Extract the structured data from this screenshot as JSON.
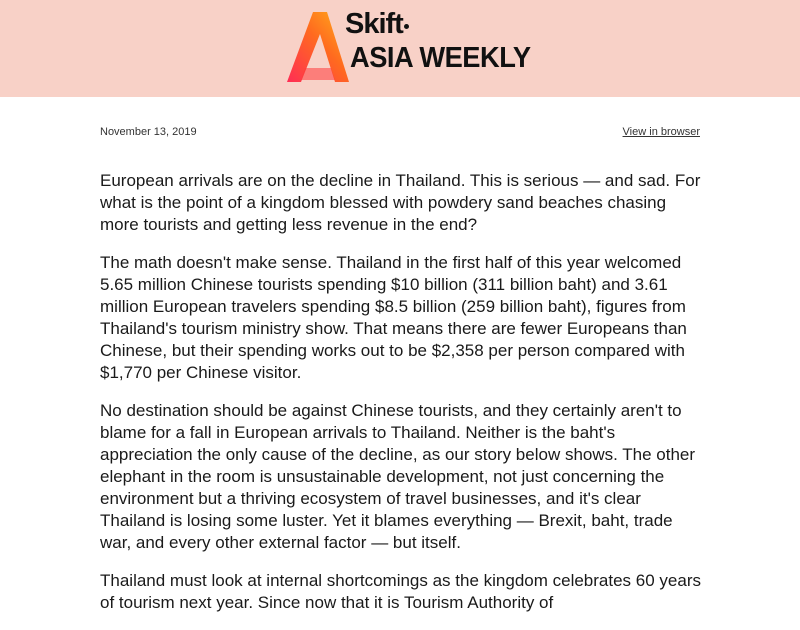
{
  "header": {
    "logo_brand": "Skift",
    "logo_title": "ASIA WEEKLY",
    "bg_color": "#f8d1c7",
    "logo_gradient": [
      "#ff2d55",
      "#ff7a1a",
      "#ffb11a"
    ]
  },
  "meta": {
    "date": "November 13, 2019",
    "view_in_browser": "View in browser"
  },
  "article": {
    "paragraphs": [
      "European arrivals are on the decline in Thailand. This is serious — and sad. For what is the point of a kingdom blessed with powdery sand beaches chasing more tourists and getting less revenue in the end?",
      "The math doesn't make sense. Thailand in the first half of this year welcomed 5.65 million Chinese tourists spending $10 billion (311 billion baht) and 3.61 million European travelers spending $8.5 billion (259 billion baht), figures from Thailand's tourism ministry show. That means there are fewer Europeans than Chinese, but their spending works out to be $2,358 per person compared with $1,770 per Chinese visitor.",
      "No destination should be against Chinese tourists, and they certainly aren't to blame for a fall in European arrivals to Thailand. Neither is the baht's appreciation the only cause of the decline, as our story below shows. The other elephant in the room is unsustainable development, not just concerning the environment but a thriving ecosystem of travel businesses, and it's clear Thailand is losing some luster. Yet it blames everything — Brexit, baht, trade war, and every other external factor — but itself.",
      "Thailand must look at internal shortcomings as the kingdom celebrates 60 years of tourism next year. Since now that it is Tourism Authority of"
    ]
  }
}
